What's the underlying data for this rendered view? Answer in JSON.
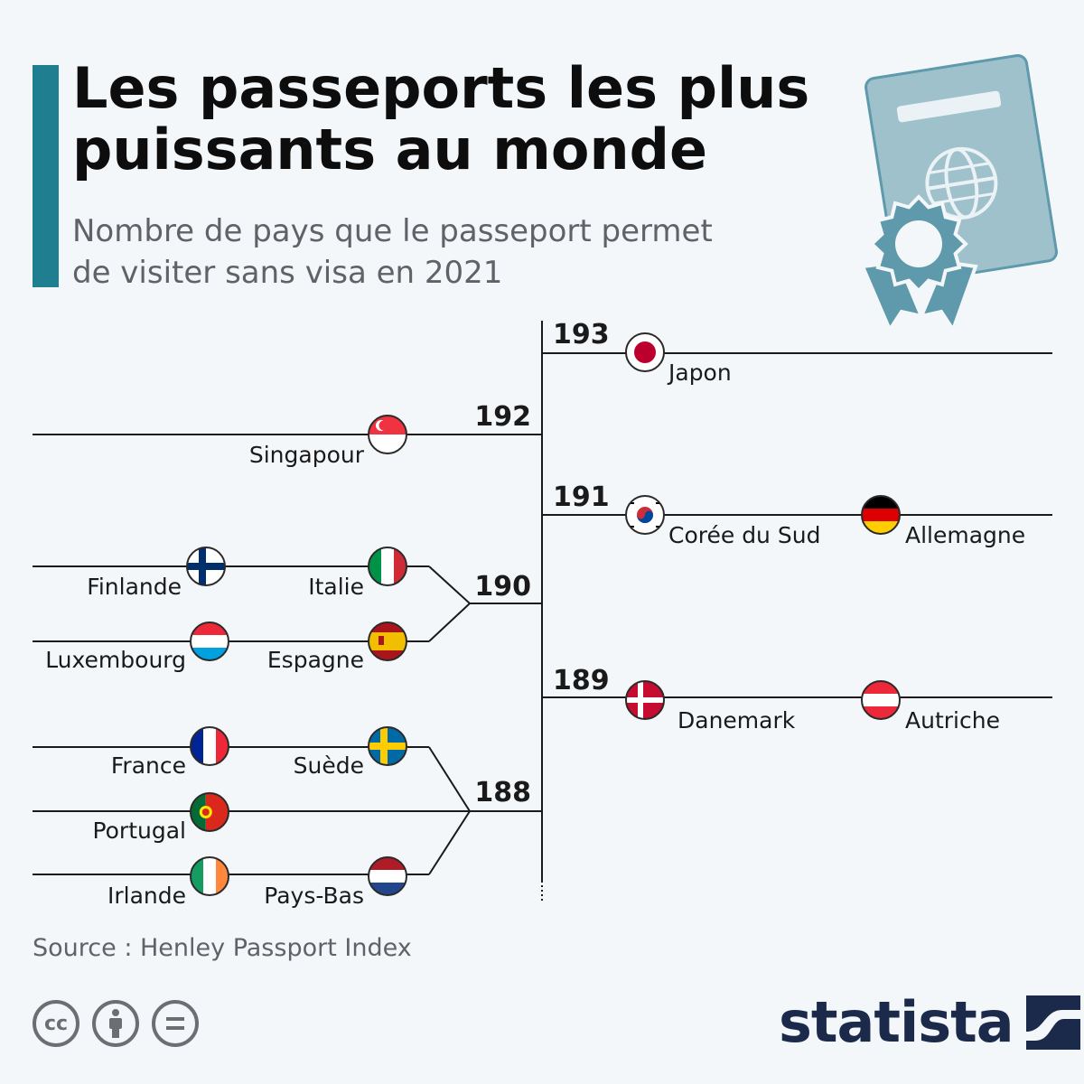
{
  "header": {
    "title": "Les passeports les plus puissants au monde",
    "subtitle": "Nombre de pays que le passeport permet de visiter sans visa en 2021"
  },
  "chart_data": {
    "type": "bracket",
    "tiers": [
      {
        "value": 193,
        "side": "right",
        "countries": [
          {
            "name": "Japon",
            "flag": "japan-flag"
          }
        ]
      },
      {
        "value": 192,
        "side": "left",
        "countries": [
          {
            "name": "Singapour",
            "flag": "singapore-flag"
          }
        ]
      },
      {
        "value": 191,
        "side": "right",
        "countries": [
          {
            "name": "Corée du Sud",
            "flag": "south-korea-flag"
          },
          {
            "name": "Allemagne",
            "flag": "germany-flag"
          }
        ]
      },
      {
        "value": 190,
        "side": "left",
        "countries": [
          {
            "name": "Finlande",
            "flag": "finland-flag"
          },
          {
            "name": "Italie",
            "flag": "italy-flag"
          },
          {
            "name": "Luxembourg",
            "flag": "luxembourg-flag"
          },
          {
            "name": "Espagne",
            "flag": "spain-flag"
          }
        ]
      },
      {
        "value": 189,
        "side": "right",
        "countries": [
          {
            "name": "Danemark",
            "flag": "denmark-flag"
          },
          {
            "name": "Autriche",
            "flag": "austria-flag"
          }
        ]
      },
      {
        "value": 188,
        "side": "left",
        "countries": [
          {
            "name": "France",
            "flag": "france-flag"
          },
          {
            "name": "Suède",
            "flag": "sweden-flag"
          },
          {
            "name": "Portugal",
            "flag": "portugal-flag"
          },
          {
            "name": "Irlande",
            "flag": "ireland-flag"
          },
          {
            "name": "Pays-Bas",
            "flag": "netherlands-flag"
          }
        ]
      }
    ]
  },
  "footer": {
    "source": "Source : Henley Passport Index",
    "logo": "statista",
    "license_icons": [
      "cc-icon",
      "attribution-icon",
      "no-derivatives-icon"
    ]
  },
  "colors": {
    "accent": "#1f7f91",
    "passport": "#9fc1cc",
    "badge": "#5e9aab",
    "logo": "#1b2a4a"
  }
}
